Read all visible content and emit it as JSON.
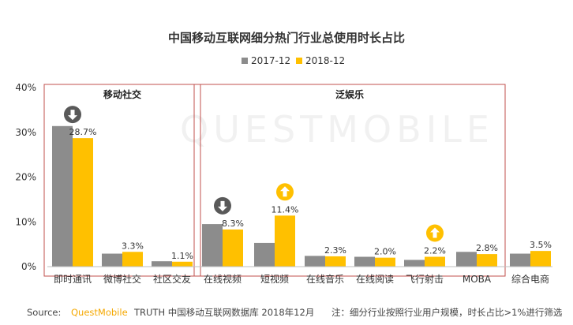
{
  "chart_data": {
    "type": "bar",
    "title": "中国移动互联网细分热门行业总使用时长占比",
    "categories": [
      "即时通讯",
      "微博社交",
      "社区交友",
      "在线视频",
      "短视频",
      "在线音乐",
      "在线阅读",
      "飞行射击",
      "MOBA",
      "综合电商"
    ],
    "series": [
      {
        "name": "2017-12",
        "color": "#8c8c8c",
        "values": [
          31.4,
          2.9,
          1.2,
          9.5,
          5.3,
          2.4,
          2.2,
          1.5,
          3.3,
          2.9
        ]
      },
      {
        "name": "2018-12",
        "color": "#ffc000",
        "values": [
          28.7,
          3.3,
          1.1,
          8.3,
          11.4,
          2.3,
          2.0,
          2.2,
          2.8,
          3.5
        ]
      }
    ],
    "data_labels": [
      "28.7%",
      "3.3%",
      "1.1%",
      "8.3%",
      "11.4%",
      "2.3%",
      "2.0%",
      "2.2%",
      "2.8%",
      "3.5%"
    ],
    "ylim": [
      0,
      40
    ],
    "yticks": [
      "0%",
      "10%",
      "20%",
      "30%",
      "40%"
    ],
    "xlabel": "",
    "ylabel": "",
    "legend_position": "top-center",
    "groups": [
      {
        "label": "移动社交",
        "start": 0,
        "end": 2
      },
      {
        "label": "泛娱乐",
        "start": 3,
        "end": 8
      }
    ],
    "trend_arrows": [
      {
        "category": "即时通讯",
        "direction": "down"
      },
      {
        "category": "在线视频",
        "direction": "down"
      },
      {
        "category": "短视频",
        "direction": "up"
      },
      {
        "category": "飞行射击",
        "direction": "up"
      }
    ]
  },
  "watermark": "QUESTMOBILE",
  "footer": {
    "source_prefix": "Source:",
    "brand": "QuestMobile",
    "source_rest": "TRUTH 中国移动互联网数据库 2018年12月",
    "note": "注：细分行业按照行业用户规模，时长占比>1%进行筛选"
  },
  "colors": {
    "down_arrow": "#595959",
    "up_arrow": "#ffc000",
    "group_box": "#c0504d"
  }
}
